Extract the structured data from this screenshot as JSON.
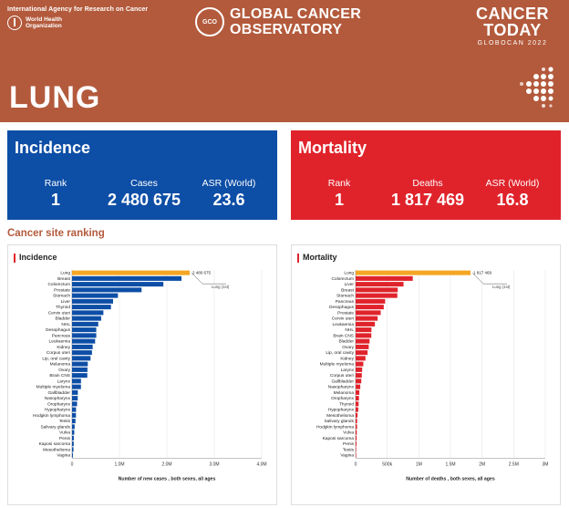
{
  "header": {
    "iarc": "International Agency for Research on Cancer",
    "who_line1": "World Health",
    "who_line2": "Organization",
    "gco_logo": "GCO",
    "gco_line1": "GLOBAL CANCER",
    "gco_line2": "OBSERVATORY",
    "today_line1": "CANCER",
    "today_line2": "TODAY",
    "today_sub": "GLOBOCAN 2022",
    "site": "LUNG",
    "bg_color": "#b35a3c"
  },
  "incidence_card": {
    "title": "Incidence",
    "rank_label": "Rank",
    "rank": "1",
    "cases_label": "Cases",
    "cases": "2 480 675",
    "asr_label": "ASR (World)",
    "asr": "23.6",
    "color": "#0d4ea6"
  },
  "mortality_card": {
    "title": "Mortality",
    "rank_label": "Rank",
    "rank": "1",
    "deaths_label": "Deaths",
    "deaths": "1 817 469",
    "asr_label": "ASR (World)",
    "asr": "16.8",
    "color": "#e0232b"
  },
  "ranking_title": "Cancer site ranking",
  "chart_data": [
    {
      "type": "bar",
      "orientation": "horizontal",
      "title": "Incidence",
      "xlabel": "Number of new cases , both sexes, all ages",
      "xlim": [
        0,
        4000000
      ],
      "xticks": [
        "0",
        "1.0M",
        "2.0M",
        "3.0M",
        "4.0M"
      ],
      "highlight": "Lung",
      "highlight_label": "2 480 675",
      "annotation": "Lung (1st)",
      "bar_color": "#0d4ea6",
      "highlight_color": "#f5a623",
      "categories": [
        "Lung",
        "Breast",
        "Colorectum",
        "Prostate",
        "Stomach",
        "Liver",
        "Thyroid",
        "Cervix uteri",
        "Bladder",
        "NHL",
        "Oesophagus",
        "Pancreas",
        "Leukaemia",
        "Kidney",
        "Corpus uteri",
        "Lip, oral cavity",
        "Melanoma",
        "Ovary",
        "Brain CNS",
        "Larynx",
        "Multiple myeloma",
        "Gallbladder",
        "Nasopharynx",
        "Oropharynx",
        "Hypopharynx",
        "Hodgkin lymphoma",
        "Testis",
        "Salivary glands",
        "Vulva",
        "Penis",
        "Kaposi sarcoma",
        "Mesothelioma",
        "Vagina"
      ],
      "values": [
        2480675,
        2308897,
        1926118,
        1466680,
        968350,
        865269,
        821214,
        661021,
        614298,
        553010,
        510716,
        510992,
        486777,
        434840,
        420368,
        389846,
        331722,
        324603,
        321731,
        188960,
        187952,
        122491,
        120416,
        106316,
        84254,
        82469,
        72031,
        55083,
        47336,
        37699,
        35360,
        30618,
        18819
      ]
    },
    {
      "type": "bar",
      "orientation": "horizontal",
      "title": "Mortality",
      "xlabel": "Number of deaths , both sexes, all ages",
      "xlim": [
        0,
        3000000
      ],
      "xticks": [
        "0",
        "500k",
        "1M",
        "1.5M",
        "2M",
        "2.5M",
        "3M"
      ],
      "highlight": "Lung",
      "highlight_label": "1 817 469",
      "annotation": "Lung (1st)",
      "bar_color": "#e0232b",
      "highlight_color": "#f5a623",
      "categories": [
        "Lung",
        "Colorectum",
        "Liver",
        "Breast",
        "Stomach",
        "Pancreas",
        "Oesophagus",
        "Prostate",
        "Cervix uteri",
        "Leukaemia",
        "NHL",
        "Brain CNS",
        "Bladder",
        "Ovary",
        "Lip, oral cavity",
        "Kidney",
        "Multiple myeloma",
        "Larynx",
        "Corpus uteri",
        "Gallbladder",
        "Nasopharynx",
        "Melanoma",
        "Oropharynx",
        "Thyroid",
        "Hypopharynx",
        "Mesothelioma",
        "Salivary glands",
        "Hodgkin lymphoma",
        "Vulva",
        "Kaposi sarcoma",
        "Penis",
        "Testis",
        "Vagina"
      ],
      "values": [
        1817469,
        903859,
        757948,
        665684,
        659853,
        467005,
        445129,
        396792,
        348189,
        305033,
        250475,
        248305,
        220349,
        206956,
        188438,
        155702,
        121388,
        103359,
        97704,
        89055,
        73482,
        58667,
        52286,
        47507,
        41393,
        29858,
        23981,
        22733,
        18579,
        15386,
        13527,
        9056,
        8324
      ]
    }
  ]
}
